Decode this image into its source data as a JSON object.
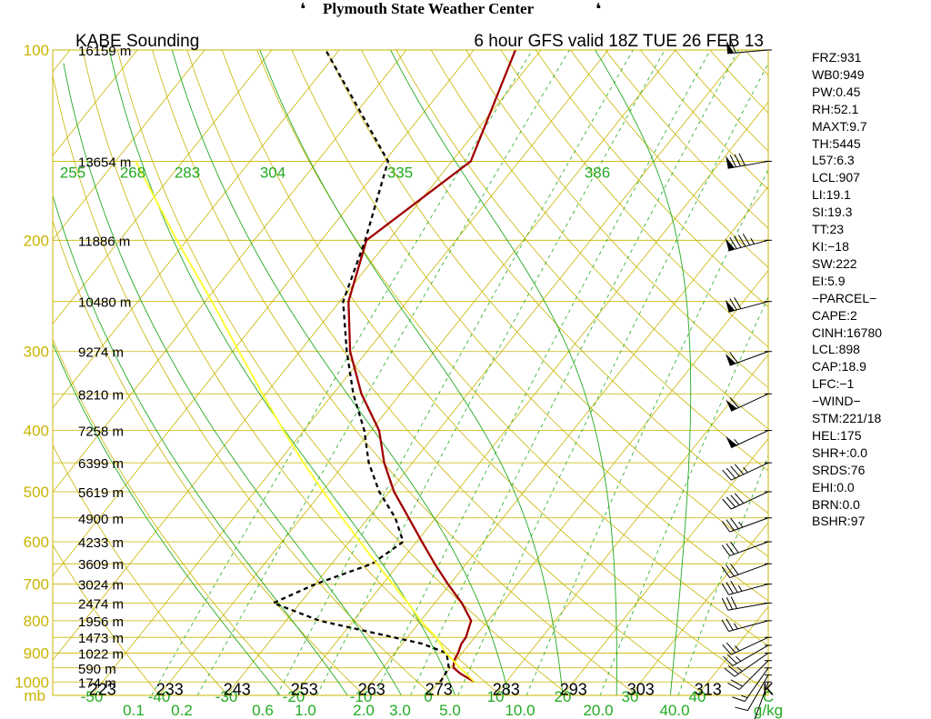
{
  "header": {
    "center": "Plymouth State Weather Center",
    "left_flag": "❛",
    "right_flag": "❛"
  },
  "chart_data": {
    "type": "line",
    "title": "KABE Sounding",
    "subtitle": "6 hour GFS valid 18Z TUE 26 FEB 13",
    "y_axis": {
      "label": "mb",
      "scale": "log",
      "range": [
        1050,
        100
      ],
      "ticks": [
        "100",
        "200",
        "300",
        "400",
        "500",
        "600",
        "700",
        "800",
        "900",
        "1000"
      ]
    },
    "x_axis": {
      "label": "C",
      "range": [
        -50,
        50
      ],
      "temp_ticks": [
        "-50",
        "-40",
        "-30",
        "-20",
        "-10",
        "0",
        "10",
        "20",
        "30",
        "40"
      ],
      "mixing_ratio_label": "g/kg",
      "mixing_ratio_ticks": [
        "0.1",
        "0.2",
        "0.6",
        "1.0",
        "2.0",
        "3.0",
        "5.0",
        "10.0",
        "20.0",
        "40.0"
      ],
      "kelvin_label": "K",
      "kelvin_ticks": [
        "223",
        "233",
        "243",
        "253",
        "263",
        "273",
        "283",
        "293",
        "303",
        "313"
      ]
    },
    "theta_e_labels": [
      "255",
      "268",
      "283",
      "304",
      "335",
      "386"
    ],
    "heights": [
      {
        "p": 100,
        "label": "16159 m"
      },
      {
        "p": 150,
        "label": "13654 m"
      },
      {
        "p": 200,
        "label": "11886 m"
      },
      {
        "p": 250,
        "label": "10480 m"
      },
      {
        "p": 300,
        "label": "9274 m"
      },
      {
        "p": 350,
        "label": "8210 m"
      },
      {
        "p": 400,
        "label": "7258 m"
      },
      {
        "p": 450,
        "label": "6399 m"
      },
      {
        "p": 500,
        "label": "5619 m"
      },
      {
        "p": 550,
        "label": "4900 m"
      },
      {
        "p": 600,
        "label": "4233 m"
      },
      {
        "p": 650,
        "label": "3609 m"
      },
      {
        "p": 700,
        "label": "3024 m"
      },
      {
        "p": 750,
        "label": "2474 m"
      },
      {
        "p": 800,
        "label": "1956 m"
      },
      {
        "p": 850,
        "label": "1473 m"
      },
      {
        "p": 900,
        "label": "1022 m"
      },
      {
        "p": 950,
        "label": "590 m"
      },
      {
        "p": 1000,
        "label": "174 m"
      }
    ],
    "series": [
      {
        "name": "temperature",
        "color": "#a00000",
        "points": [
          [
            1000,
            5.3
          ],
          [
            970,
            2.2
          ],
          [
            950,
            0.5
          ],
          [
            925,
            -0.3
          ],
          [
            900,
            -0.6
          ],
          [
            870,
            -1.2
          ],
          [
            850,
            -1.3
          ],
          [
            800,
            -2.5
          ],
          [
            750,
            -6.0
          ],
          [
            700,
            -10.3
          ],
          [
            650,
            -14.7
          ],
          [
            600,
            -19.2
          ],
          [
            550,
            -24.0
          ],
          [
            500,
            -29.3
          ],
          [
            450,
            -34.2
          ],
          [
            400,
            -38.8
          ],
          [
            350,
            -45.8
          ],
          [
            300,
            -52.5
          ],
          [
            250,
            -58.7
          ],
          [
            200,
            -63.3
          ],
          [
            150,
            -57.2
          ],
          [
            100,
            -63.8
          ]
        ]
      },
      {
        "name": "dewpoint",
        "color": "#000000",
        "points": [
          [
            1000,
            0.2
          ],
          [
            950,
            -0.2
          ],
          [
            900,
            -2.3
          ],
          [
            870,
            -7.0
          ],
          [
            850,
            -12.0
          ],
          [
            800,
            -25.0
          ],
          [
            750,
            -34.0
          ],
          [
            700,
            -30.0
          ],
          [
            650,
            -24.0
          ],
          [
            600,
            -22.0
          ],
          [
            550,
            -26.0
          ],
          [
            500,
            -31.5
          ],
          [
            450,
            -36.5
          ],
          [
            400,
            -41.0
          ],
          [
            350,
            -47.0
          ],
          [
            300,
            -53.0
          ],
          [
            250,
            -59.5
          ],
          [
            200,
            -63.5
          ],
          [
            150,
            -69.5
          ],
          [
            100,
            -92.0
          ]
        ]
      },
      {
        "name": "parcel",
        "color": "#ffff33",
        "points": [
          [
            1000,
            5.3
          ],
          [
            950,
            1.5
          ],
          [
            900,
            -2.4
          ],
          [
            850,
            -5.7
          ],
          [
            800,
            -10.0
          ],
          [
            750,
            -14.0
          ],
          [
            700,
            -18.5
          ],
          [
            650,
            -23.3
          ],
          [
            600,
            -28.4
          ],
          [
            550,
            -33.9
          ],
          [
            500,
            -39.8
          ],
          [
            450,
            -46.2
          ],
          [
            400,
            -53.0
          ],
          [
            350,
            -60.5
          ],
          [
            300,
            -69.0
          ],
          [
            250,
            -79.0
          ],
          [
            200,
            -91.5
          ],
          [
            150,
            -107.0
          ]
        ]
      }
    ],
    "winds": [
      {
        "p": 1000,
        "spd": 5,
        "dir": 200
      },
      {
        "p": 975,
        "spd": 10,
        "dir": 210
      },
      {
        "p": 950,
        "spd": 15,
        "dir": 215
      },
      {
        "p": 925,
        "spd": 20,
        "dir": 225
      },
      {
        "p": 900,
        "spd": 25,
        "dir": 235
      },
      {
        "p": 875,
        "spd": 25,
        "dir": 240
      },
      {
        "p": 850,
        "spd": 25,
        "dir": 245
      },
      {
        "p": 800,
        "spd": 25,
        "dir": 255
      },
      {
        "p": 750,
        "spd": 30,
        "dir": 260
      },
      {
        "p": 700,
        "spd": 35,
        "dir": 255
      },
      {
        "p": 650,
        "spd": 30,
        "dir": 250
      },
      {
        "p": 600,
        "spd": 30,
        "dir": 250
      },
      {
        "p": 550,
        "spd": 35,
        "dir": 250
      },
      {
        "p": 500,
        "spd": 40,
        "dir": 245
      },
      {
        "p": 450,
        "spd": 45,
        "dir": 245
      },
      {
        "p": 400,
        "spd": 55,
        "dir": 245
      },
      {
        "p": 350,
        "spd": 60,
        "dir": 245
      },
      {
        "p": 300,
        "spd": 60,
        "dir": 250
      },
      {
        "p": 250,
        "spd": 70,
        "dir": 255
      },
      {
        "p": 200,
        "spd": 95,
        "dir": 255
      },
      {
        "p": 150,
        "spd": 80,
        "dir": 260
      },
      {
        "p": 100,
        "spd": 60,
        "dir": 265
      }
    ],
    "grid": true,
    "colors": {
      "isobar": "#c8b400",
      "isotherm": "#c8b400",
      "dry_adiabat": "#c8b400",
      "moist_adiabat": "#22aa22",
      "mixing_ratio": "#22aa22",
      "pressure_labels": "#c8b400",
      "theta_labels": "#22aa22"
    }
  },
  "indices": [
    "FRZ:931",
    "WB0:949",
    "PW:0.45",
    "RH:52.1",
    "MAXT:9.7",
    "TH:5445",
    "L57:6.3",
    "LCL:907",
    "LI:19.1",
    "SI:19.3",
    "TT:23",
    "KI:−18",
    "SW:222",
    "EI:5.9",
    "−PARCEL−",
    "CAPE:2",
    "CINH:16780",
    "LCL:898",
    "CAP:18.9",
    "LFC:−1",
    "−WIND−",
    "STM:221/18",
    "HEL:175",
    "SHR+:0.0",
    "SRDS:76",
    "EHI:0.0",
    "BRN:0.0",
    "BSHR:97"
  ]
}
